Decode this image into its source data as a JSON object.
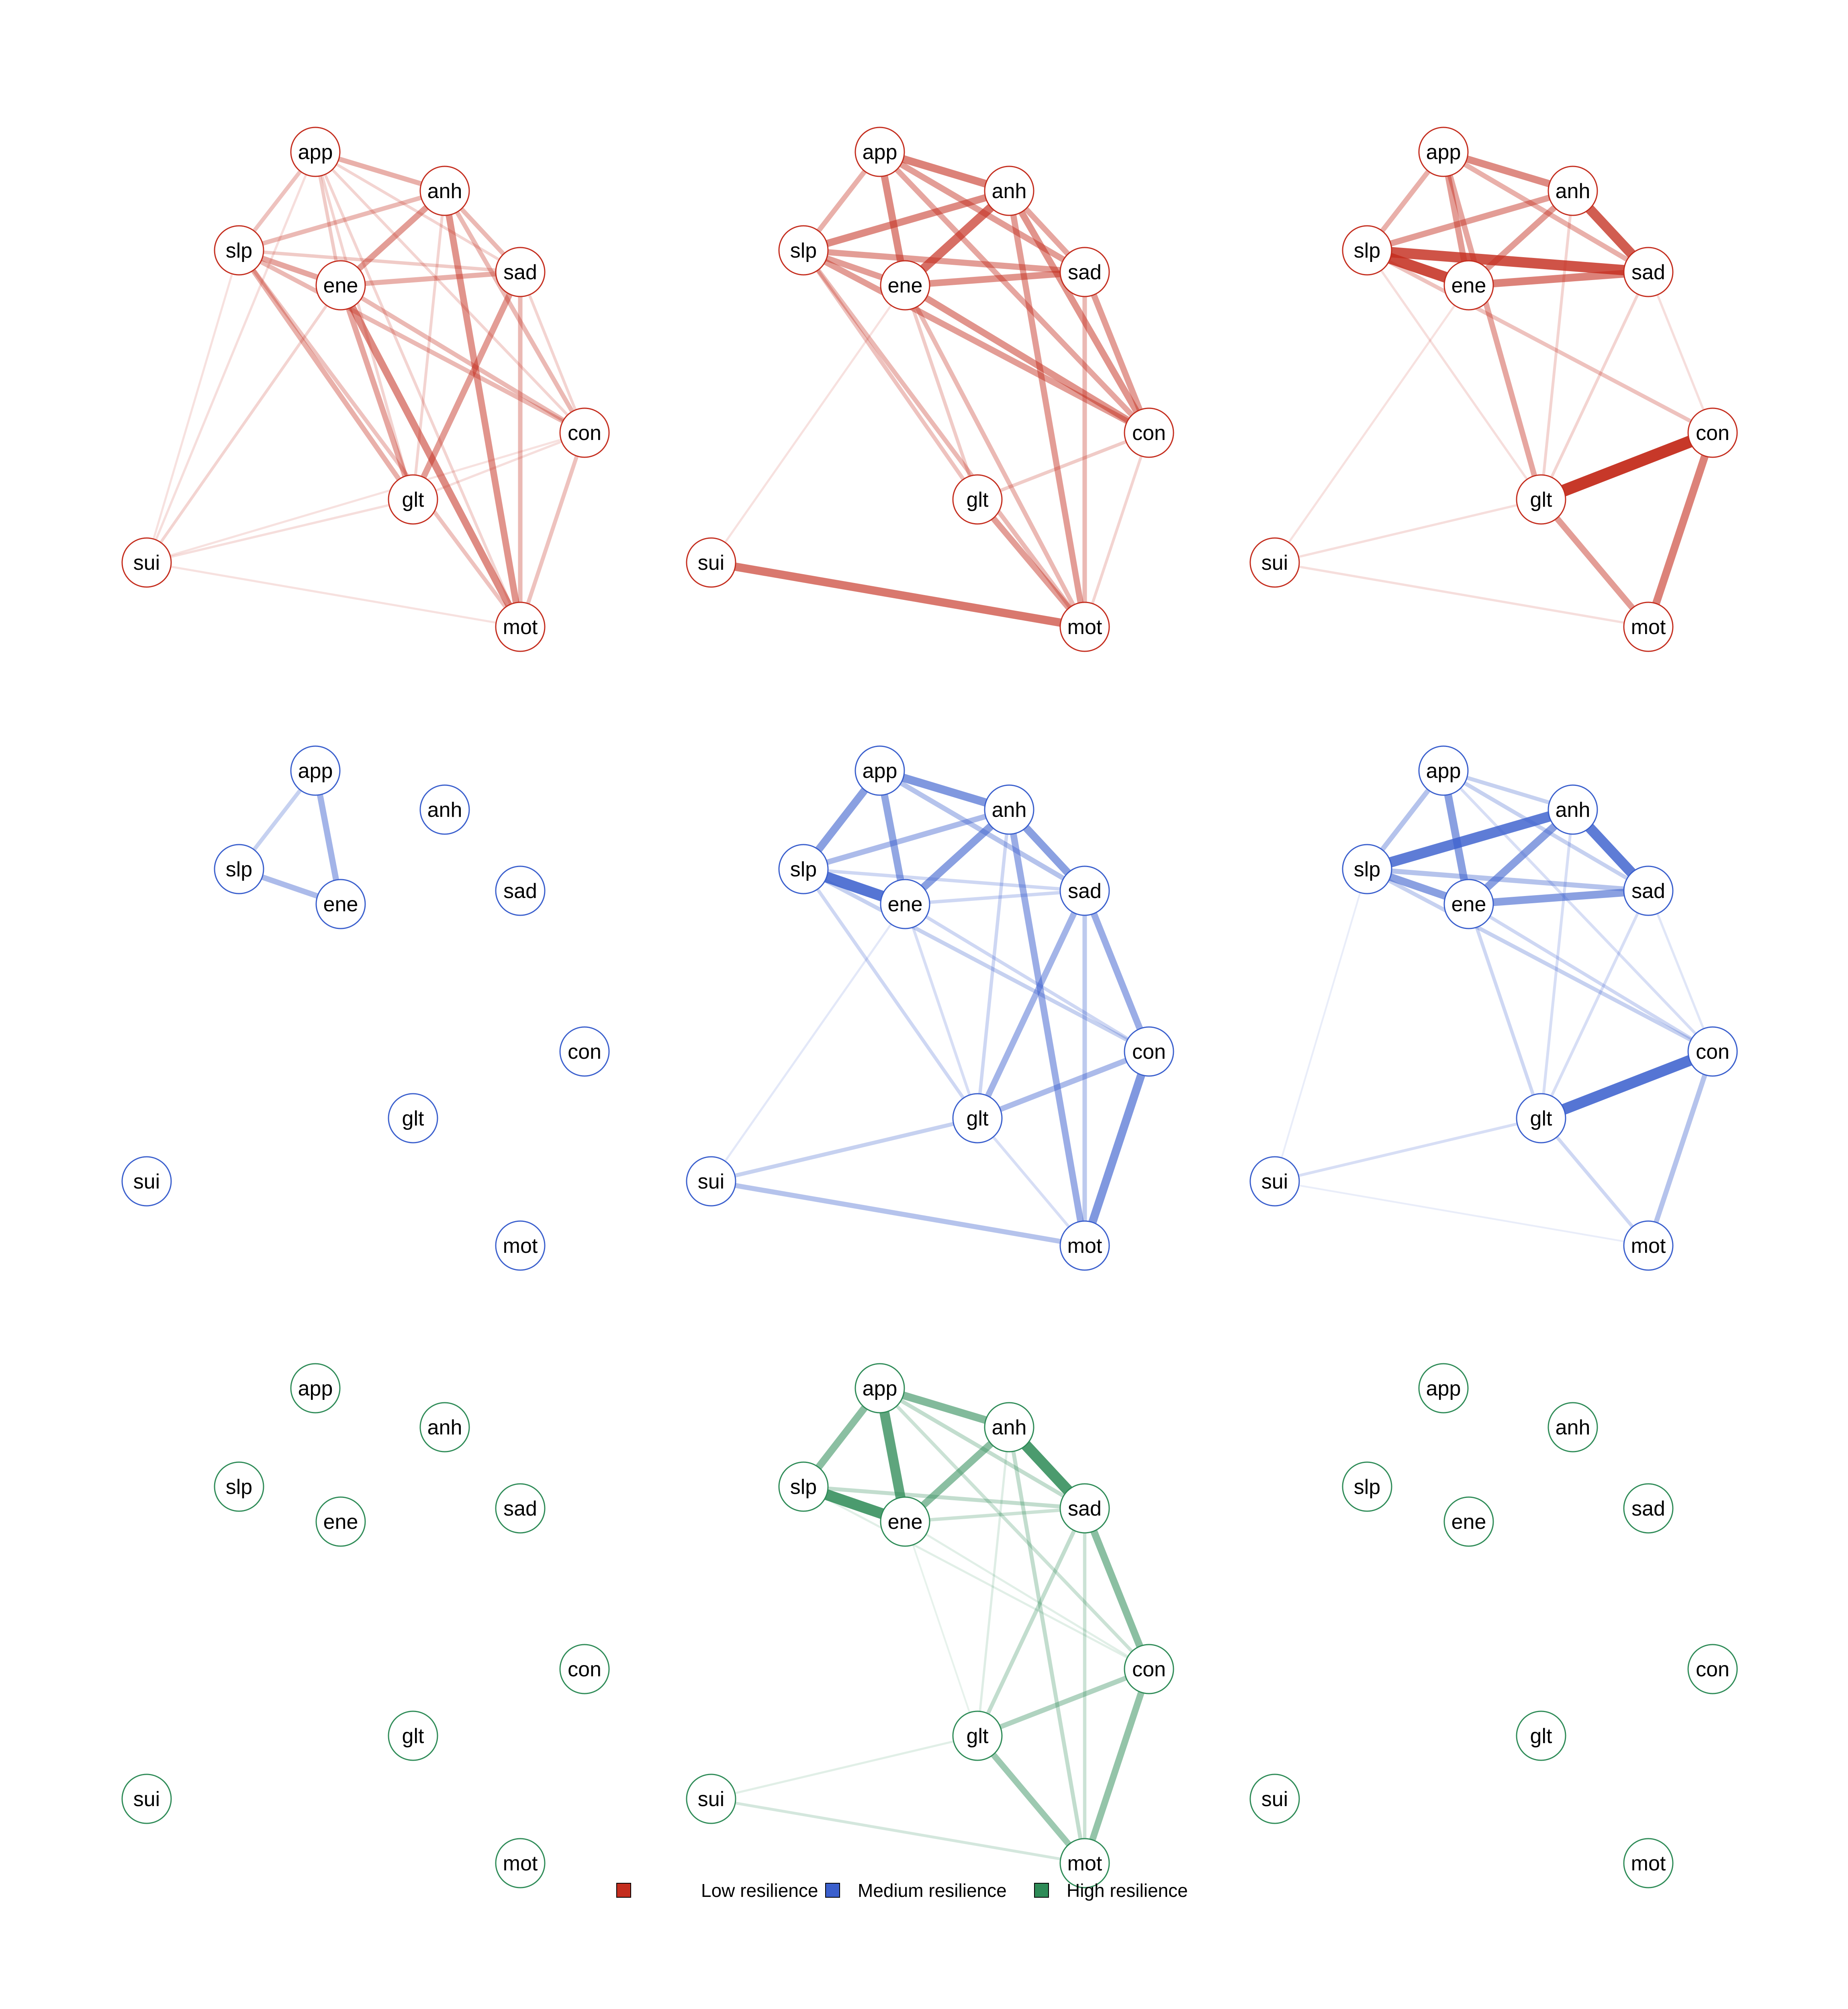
{
  "nodes": [
    "app",
    "anh",
    "slp",
    "ene",
    "sad",
    "con",
    "glt",
    "sui",
    "mot"
  ],
  "groups": [
    {
      "name": "Low resilience",
      "color": "#c42d1e"
    },
    {
      "name": "Medium resilience",
      "color": "#3a5fcd"
    },
    {
      "name": "High resilience",
      "color": "#2e8b57"
    }
  ],
  "legend": [
    {
      "label": "Low resilience",
      "color": "#c42d1e"
    },
    {
      "label": "Medium resilience",
      "color": "#3a5fcd"
    },
    {
      "label": "High resilience",
      "color": "#2e8b57"
    }
  ],
  "panels": [
    {
      "group": 0,
      "edges": [
        [
          "app",
          "anh",
          0.35
        ],
        [
          "app",
          "slp",
          0.25
        ],
        [
          "app",
          "ene",
          0.2
        ],
        [
          "app",
          "sad",
          0.15
        ],
        [
          "app",
          "con",
          0.15
        ],
        [
          "app",
          "glt",
          0.15
        ],
        [
          "app",
          "mot",
          0.15
        ],
        [
          "anh",
          "slp",
          0.3
        ],
        [
          "anh",
          "ene",
          0.45
        ],
        [
          "anh",
          "sad",
          0.3
        ],
        [
          "anh",
          "con",
          0.3
        ],
        [
          "anh",
          "mot",
          0.5
        ],
        [
          "anh",
          "glt",
          0.15
        ],
        [
          "slp",
          "ene",
          0.4
        ],
        [
          "slp",
          "sad",
          0.2
        ],
        [
          "slp",
          "con",
          0.3
        ],
        [
          "slp",
          "glt",
          0.35
        ],
        [
          "slp",
          "sui",
          0.08
        ],
        [
          "slp",
          "mot",
          0.25
        ],
        [
          "ene",
          "sad",
          0.35
        ],
        [
          "ene",
          "con",
          0.3
        ],
        [
          "ene",
          "glt",
          0.4
        ],
        [
          "ene",
          "mot",
          0.55
        ],
        [
          "ene",
          "sui",
          0.15
        ],
        [
          "sad",
          "glt",
          0.45
        ],
        [
          "sad",
          "con",
          0.15
        ],
        [
          "sad",
          "mot",
          0.3
        ],
        [
          "con",
          "mot",
          0.25
        ],
        [
          "con",
          "glt",
          0.1
        ],
        [
          "sui",
          "glt",
          0.1
        ],
        [
          "sui",
          "mot",
          0.08
        ],
        [
          "sui",
          "app",
          0.1
        ],
        [
          "sui",
          "con",
          0.08
        ]
      ]
    },
    {
      "group": 0,
      "edges": [
        [
          "app",
          "anh",
          0.6
        ],
        [
          "app",
          "slp",
          0.35
        ],
        [
          "app",
          "ene",
          0.55
        ],
        [
          "app",
          "sad",
          0.45
        ],
        [
          "app",
          "con",
          0.4
        ],
        [
          "anh",
          "slp",
          0.55
        ],
        [
          "anh",
          "ene",
          0.7
        ],
        [
          "anh",
          "sad",
          0.4
        ],
        [
          "anh",
          "con",
          0.5
        ],
        [
          "anh",
          "mot",
          0.45
        ],
        [
          "slp",
          "ene",
          0.45
        ],
        [
          "slp",
          "sad",
          0.45
        ],
        [
          "slp",
          "con",
          0.45
        ],
        [
          "slp",
          "mot",
          0.3
        ],
        [
          "slp",
          "glt",
          0.25
        ],
        [
          "ene",
          "sad",
          0.5
        ],
        [
          "ene",
          "con",
          0.5
        ],
        [
          "ene",
          "mot",
          0.3
        ],
        [
          "ene",
          "glt",
          0.2
        ],
        [
          "sad",
          "con",
          0.45
        ],
        [
          "sad",
          "mot",
          0.3
        ],
        [
          "con",
          "mot",
          0.15
        ],
        [
          "con",
          "glt",
          0.2
        ],
        [
          "glt",
          "mot",
          0.45
        ],
        [
          "sui",
          "mot",
          0.65
        ],
        [
          "sui",
          "ene",
          0.08
        ]
      ]
    },
    {
      "group": 0,
      "edges": [
        [
          "app",
          "anh",
          0.55
        ],
        [
          "app",
          "slp",
          0.35
        ],
        [
          "app",
          "ene",
          0.45
        ],
        [
          "app",
          "sad",
          0.35
        ],
        [
          "app",
          "glt",
          0.4
        ],
        [
          "anh",
          "slp",
          0.45
        ],
        [
          "anh",
          "ene",
          0.45
        ],
        [
          "anh",
          "sad",
          0.8
        ],
        [
          "anh",
          "glt",
          0.15
        ],
        [
          "slp",
          "ene",
          0.9
        ],
        [
          "slp",
          "sad",
          0.85
        ],
        [
          "slp",
          "con",
          0.25
        ],
        [
          "slp",
          "glt",
          0.1
        ],
        [
          "ene",
          "sad",
          0.6
        ],
        [
          "sad",
          "con",
          0.1
        ],
        [
          "sad",
          "glt",
          0.15
        ],
        [
          "con",
          "glt",
          1.0
        ],
        [
          "con",
          "mot",
          0.6
        ],
        [
          "glt",
          "mot",
          0.45
        ],
        [
          "sui",
          "glt",
          0.1
        ],
        [
          "sui",
          "mot",
          0.1
        ],
        [
          "sui",
          "ene",
          0.08
        ]
      ]
    },
    {
      "group": 1,
      "edges": [
        [
          "app",
          "slp",
          0.25
        ],
        [
          "app",
          "ene",
          0.45
        ],
        [
          "slp",
          "ene",
          0.4
        ]
      ]
    },
    {
      "group": 1,
      "edges": [
        [
          "app",
          "anh",
          0.65
        ],
        [
          "app",
          "slp",
          0.6
        ],
        [
          "app",
          "ene",
          0.55
        ],
        [
          "app",
          "sad",
          0.35
        ],
        [
          "anh",
          "slp",
          0.4
        ],
        [
          "anh",
          "ene",
          0.6
        ],
        [
          "anh",
          "sad",
          0.6
        ],
        [
          "anh",
          "mot",
          0.5
        ],
        [
          "anh",
          "glt",
          0.2
        ],
        [
          "slp",
          "ene",
          0.9
        ],
        [
          "slp",
          "sad",
          0.2
        ],
        [
          "slp",
          "con",
          0.25
        ],
        [
          "slp",
          "glt",
          0.2
        ],
        [
          "ene",
          "sad",
          0.2
        ],
        [
          "ene",
          "con",
          0.2
        ],
        [
          "ene",
          "glt",
          0.15
        ],
        [
          "sad",
          "glt",
          0.45
        ],
        [
          "sad",
          "con",
          0.5
        ],
        [
          "sad",
          "mot",
          0.3
        ],
        [
          "con",
          "glt",
          0.4
        ],
        [
          "con",
          "mot",
          0.65
        ],
        [
          "glt",
          "mot",
          0.15
        ],
        [
          "sui",
          "glt",
          0.25
        ],
        [
          "sui",
          "mot",
          0.35
        ],
        [
          "sui",
          "ene",
          0.08
        ]
      ]
    },
    {
      "group": 1,
      "edges": [
        [
          "app",
          "anh",
          0.25
        ],
        [
          "app",
          "slp",
          0.35
        ],
        [
          "app",
          "ene",
          0.6
        ],
        [
          "app",
          "sad",
          0.25
        ],
        [
          "app",
          "con",
          0.15
        ],
        [
          "anh",
          "slp",
          0.85
        ],
        [
          "anh",
          "ene",
          0.6
        ],
        [
          "anh",
          "sad",
          0.85
        ],
        [
          "anh",
          "glt",
          0.15
        ],
        [
          "slp",
          "ene",
          0.6
        ],
        [
          "slp",
          "sad",
          0.35
        ],
        [
          "slp",
          "con",
          0.25
        ],
        [
          "slp",
          "sui",
          0.05
        ],
        [
          "ene",
          "sad",
          0.6
        ],
        [
          "ene",
          "con",
          0.2
        ],
        [
          "ene",
          "glt",
          0.2
        ],
        [
          "sad",
          "glt",
          0.15
        ],
        [
          "sad",
          "con",
          0.1
        ],
        [
          "con",
          "glt",
          0.9
        ],
        [
          "con",
          "mot",
          0.35
        ],
        [
          "glt",
          "mot",
          0.2
        ],
        [
          "sui",
          "glt",
          0.15
        ],
        [
          "sui",
          "mot",
          0.05
        ]
      ]
    },
    {
      "group": 2,
      "edges": []
    },
    {
      "group": 2,
      "edges": [
        [
          "app",
          "anh",
          0.6
        ],
        [
          "app",
          "slp",
          0.55
        ],
        [
          "app",
          "ene",
          0.8
        ],
        [
          "app",
          "sad",
          0.25
        ],
        [
          "app",
          "con",
          0.2
        ],
        [
          "anh",
          "ene",
          0.55
        ],
        [
          "anh",
          "sad",
          0.9
        ],
        [
          "anh",
          "mot",
          0.25
        ],
        [
          "anh",
          "glt",
          0.1
        ],
        [
          "slp",
          "ene",
          0.9
        ],
        [
          "slp",
          "sad",
          0.25
        ],
        [
          "slp",
          "con",
          0.08
        ],
        [
          "ene",
          "sad",
          0.2
        ],
        [
          "ene",
          "con",
          0.08
        ],
        [
          "ene",
          "glt",
          0.05
        ],
        [
          "sad",
          "con",
          0.55
        ],
        [
          "sad",
          "glt",
          0.25
        ],
        [
          "sad",
          "mot",
          0.2
        ],
        [
          "con",
          "glt",
          0.35
        ],
        [
          "con",
          "mot",
          0.5
        ],
        [
          "glt",
          "mot",
          0.45
        ],
        [
          "sui",
          "glt",
          0.08
        ],
        [
          "sui",
          "mot",
          0.15
        ]
      ]
    },
    {
      "group": 2,
      "edges": []
    }
  ]
}
